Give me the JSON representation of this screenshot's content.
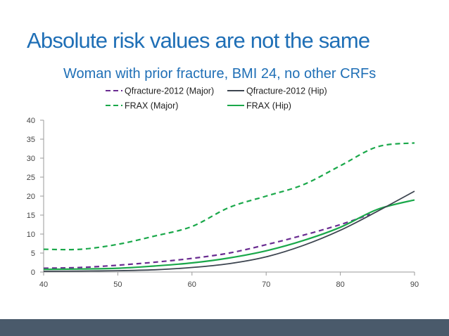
{
  "slide": {
    "title": "Absolute risk values are not the same",
    "subtitle": "Woman with prior fracture, BMI 24, no other CRFs"
  },
  "colors": {
    "title": "#1f6fb6",
    "footer": "#4a5a6b",
    "axis": "#9a9a9a"
  },
  "chart_data": {
    "type": "line",
    "xlim": [
      40,
      90
    ],
    "ylim": [
      0,
      40
    ],
    "x_ticks": [
      40,
      50,
      60,
      70,
      80,
      90
    ],
    "y_ticks": [
      0,
      5,
      10,
      15,
      20,
      25,
      30,
      35,
      40
    ],
    "grid": false,
    "legend_position": "top",
    "series": [
      {
        "name": "Qfracture-2012 (Major)",
        "color": "#6a2c91",
        "dash": "dashed",
        "x": [
          40,
          45,
          50,
          55,
          60,
          65,
          70,
          75,
          80,
          84
        ],
        "y": [
          1.0,
          1.2,
          1.8,
          2.6,
          3.6,
          5.0,
          7.2,
          9.7,
          12.5,
          15.2
        ]
      },
      {
        "name": "Qfracture-2012 (Hip)",
        "color": "#3d4550",
        "dash": "solid",
        "x": [
          40,
          45,
          50,
          55,
          60,
          65,
          70,
          75,
          80,
          85,
          90
        ],
        "y": [
          0.2,
          0.25,
          0.35,
          0.6,
          1.2,
          2.2,
          4.0,
          7.0,
          11.0,
          16.0,
          21.3
        ]
      },
      {
        "name": "FRAX (Major)",
        "color": "#1aa84a",
        "dash": "dashed",
        "x": [
          40,
          45,
          50,
          55,
          60,
          65,
          70,
          75,
          80,
          85,
          90
        ],
        "y": [
          6.0,
          6.0,
          7.3,
          9.5,
          12.0,
          17.0,
          20.0,
          23.0,
          28.0,
          33.0,
          34.0
        ]
      },
      {
        "name": "FRAX (Hip)",
        "color": "#1aa84a",
        "dash": "solid",
        "x": [
          40,
          45,
          50,
          55,
          60,
          65,
          70,
          75,
          80,
          85,
          90
        ],
        "y": [
          0.7,
          0.8,
          1.0,
          1.6,
          2.4,
          3.7,
          5.6,
          8.3,
          11.8,
          16.5,
          19.0
        ]
      }
    ]
  }
}
